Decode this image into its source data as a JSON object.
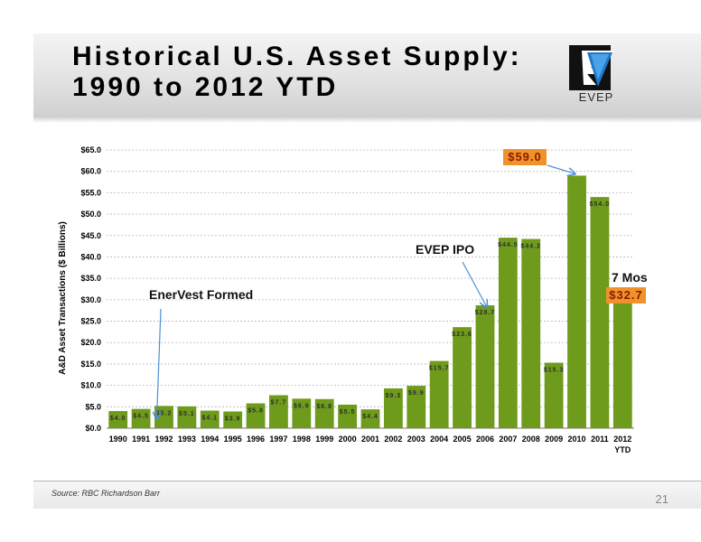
{
  "slide": {
    "title_line1": "Historical U.S. Asset Supply:",
    "title_line2": "1990 to 2012 YTD",
    "logo_text": "EVEP",
    "source": "Source: RBC Richardson Barr",
    "page_number": "21"
  },
  "chart_data": {
    "type": "bar",
    "title": "",
    "ylabel": "A&D Asset Transactions ($ Billions)",
    "xlabel": "",
    "ylim": [
      0,
      65
    ],
    "yticks": [
      "$0.0",
      "$5.0",
      "$10.0",
      "$15.0",
      "$20.0",
      "$25.0",
      "$30.0",
      "$35.0",
      "$40.0",
      "$45.0",
      "$50.0",
      "$55.0",
      "$60.0",
      "$65.0"
    ],
    "grid": true,
    "categories": [
      "1990",
      "1991",
      "1992",
      "1993",
      "1994",
      "1995",
      "1996",
      "1997",
      "1998",
      "1999",
      "2000",
      "2001",
      "2002",
      "2003",
      "2004",
      "2005",
      "2006",
      "2007",
      "2008",
      "2009",
      "2010",
      "2011",
      "2012"
    ],
    "category_sublabels": {
      "2012": "YTD"
    },
    "values": [
      4.0,
      4.5,
      5.2,
      5.1,
      4.1,
      3.9,
      5.8,
      7.7,
      6.9,
      6.8,
      5.5,
      4.4,
      9.3,
      9.9,
      15.7,
      23.6,
      28.7,
      44.5,
      44.2,
      15.3,
      59.0,
      54.0,
      32.7
    ],
    "data_labels": [
      "$4.0",
      "$4.5",
      "$5.2",
      "$5.1",
      "$4.1",
      "$3.9",
      "$5.8",
      "$7.7",
      "$6.9",
      "$6.8",
      "$5.5",
      "$4.4",
      "$9.3",
      "$9.9",
      "$15.7",
      "$23.6",
      "$28.7",
      "$44.5",
      "$44.2",
      "$15.3",
      "$59.0",
      "$54.0",
      "$32.7"
    ],
    "bar_color": "#6e9b1c",
    "highlight_color": "#f0922b",
    "annotations": [
      {
        "text": "EnerVest Formed",
        "points_to": "1992"
      },
      {
        "text": "EVEP IPO",
        "points_to": "2006"
      },
      {
        "text": "7 Mos",
        "points_to": "2012"
      }
    ]
  }
}
